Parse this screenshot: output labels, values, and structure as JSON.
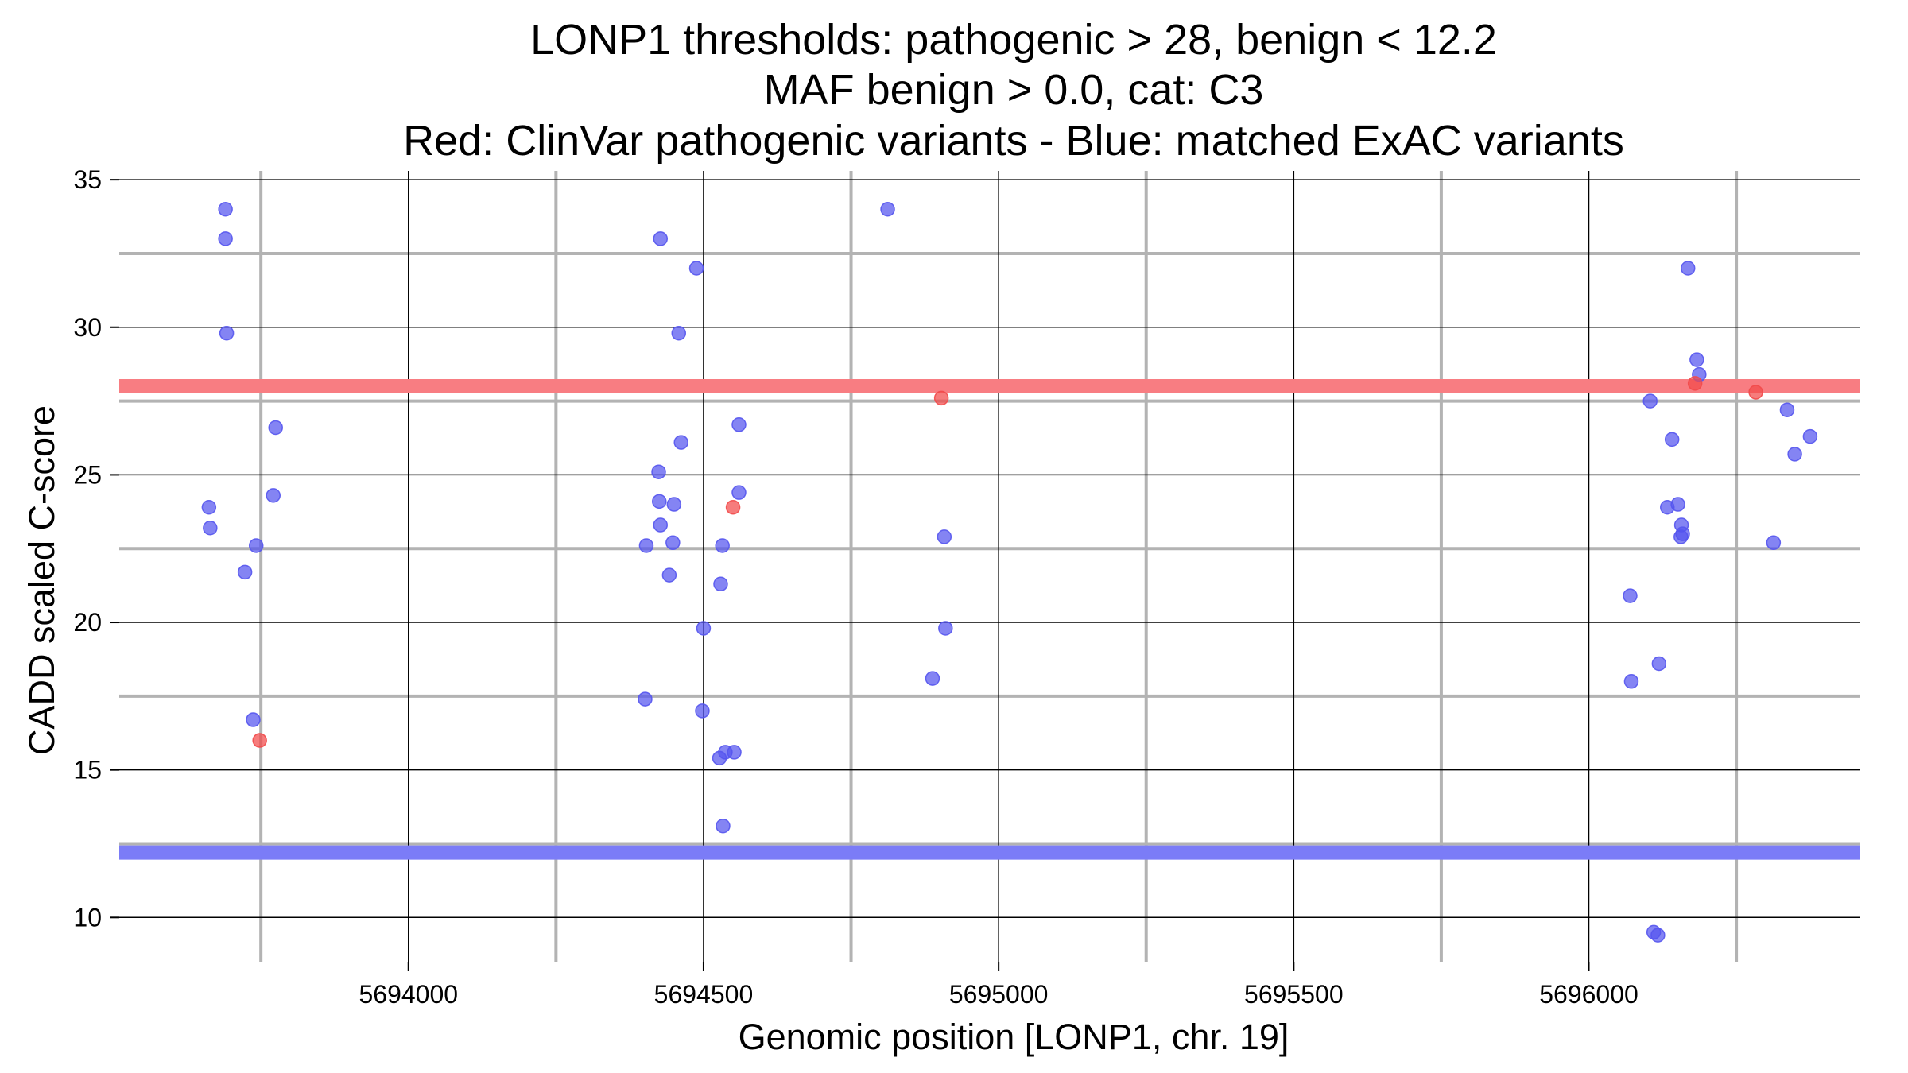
{
  "chart_data": {
    "type": "scatter",
    "title_lines": [
      "LONP1 thresholds: pathogenic > 28, benign < 12.2",
      "MAF benign > 0.0, cat: C3",
      "Red: ClinVar pathogenic variants - Blue: matched ExAC variants"
    ],
    "xlabel": "Genomic position [LONP1, chr. 19]",
    "ylabel": "CADD scaled C-score",
    "xlim": [
      5693510,
      5696460
    ],
    "ylim": [
      8.5,
      35.3
    ],
    "x_ticks": [
      5694000,
      5694500,
      5695000,
      5695500,
      5696000
    ],
    "x_tick_labels": [
      "5694000",
      "5694500",
      "5695000",
      "5695500",
      "5696000"
    ],
    "y_ticks": [
      10,
      15,
      20,
      25,
      30,
      35
    ],
    "y_tick_labels": [
      "10",
      "15",
      "20",
      "25",
      "30",
      "35"
    ],
    "exon_boundaries_x": [
      5693750,
      5694250,
      5694750,
      5695250,
      5695750,
      5696250
    ],
    "score_guides_y": [
      12.5,
      17.5,
      22.5,
      27.5,
      32.5
    ],
    "grid": true,
    "thresholds": [
      {
        "name": "pathogenic",
        "value": 28,
        "color": "#f87d82"
      },
      {
        "name": "benign",
        "value": 12.2,
        "color": "#7b7cf7"
      }
    ],
    "series": [
      {
        "color": "#5555ee",
        "points": [
          [
            5693690,
            34.0
          ],
          [
            5693690,
            33.0
          ],
          [
            5693692,
            29.8
          ],
          [
            5693662,
            23.9
          ],
          [
            5693664,
            23.2
          ],
          [
            5693742,
            22.6
          ],
          [
            5693723,
            21.7
          ],
          [
            5693775,
            26.6
          ],
          [
            5693771,
            24.3
          ],
          [
            5693737,
            16.7
          ],
          [
            5694427,
            33.0
          ],
          [
            5694488,
            32.0
          ],
          [
            5694458,
            29.8
          ],
          [
            5694560,
            26.7
          ],
          [
            5694462,
            26.1
          ],
          [
            5694424,
            25.1
          ],
          [
            5694560,
            24.4
          ],
          [
            5694425,
            24.1
          ],
          [
            5694450,
            24.0
          ],
          [
            5694427,
            23.3
          ],
          [
            5694448,
            22.7
          ],
          [
            5694403,
            22.6
          ],
          [
            5694532,
            22.6
          ],
          [
            5694442,
            21.6
          ],
          [
            5694529,
            21.3
          ],
          [
            5694500,
            19.8
          ],
          [
            5694401,
            17.4
          ],
          [
            5694498,
            17.0
          ],
          [
            5694537,
            15.6
          ],
          [
            5694552,
            15.6
          ],
          [
            5694527,
            15.4
          ],
          [
            5694533,
            13.1
          ],
          [
            5694812,
            34.0
          ],
          [
            5694908,
            22.9
          ],
          [
            5694910,
            19.8
          ],
          [
            5694888,
            18.1
          ],
          [
            5696168,
            32.0
          ],
          [
            5696183,
            28.9
          ],
          [
            5696187,
            28.4
          ],
          [
            5696104,
            27.5
          ],
          [
            5696141,
            26.2
          ],
          [
            5696151,
            24.0
          ],
          [
            5696133,
            23.9
          ],
          [
            5696157,
            23.3
          ],
          [
            5696159,
            23.0
          ],
          [
            5696156,
            22.9
          ],
          [
            5696070,
            20.9
          ],
          [
            5696119,
            18.6
          ],
          [
            5696072,
            18.0
          ],
          [
            5696110,
            9.5
          ],
          [
            5696117,
            9.4
          ],
          [
            5696336,
            27.2
          ],
          [
            5696375,
            26.3
          ],
          [
            5696349,
            25.7
          ],
          [
            5696313,
            22.7
          ]
        ]
      },
      {
        "color": "#f24a4a",
        "points": [
          [
            5693748,
            16.0
          ],
          [
            5694550,
            23.9
          ],
          [
            5694903,
            27.6
          ],
          [
            5696180,
            28.1
          ],
          [
            5696283,
            27.8
          ]
        ]
      }
    ]
  }
}
